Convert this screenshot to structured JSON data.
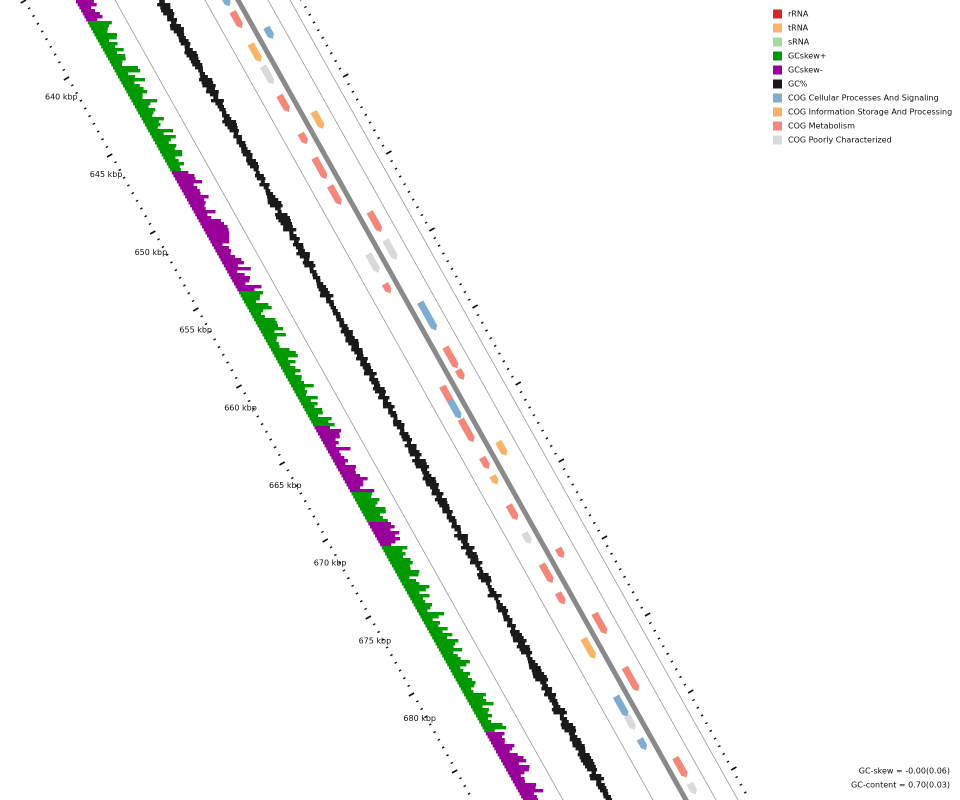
{
  "legend": {
    "items": [
      {
        "label": "rRNA",
        "color": "#d62728"
      },
      {
        "label": "tRNA",
        "color": "#f9b46a"
      },
      {
        "label": "sRNA",
        "color": "#a6dba0"
      },
      {
        "label": "GCskew+",
        "color": "#009900"
      },
      {
        "label": "GCskew-",
        "color": "#990099"
      },
      {
        "label": "GC%",
        "color": "#1a1a1a"
      },
      {
        "label": "COG Cellular Processes And Signaling",
        "color": "#7fadd1"
      },
      {
        "label": "COG Information Storage And Processing",
        "color": "#f9b46a"
      },
      {
        "label": "COG Metabolism",
        "color": "#f4877a"
      },
      {
        "label": "COG Poorly Characterized",
        "color": "#d9d9d9"
      }
    ]
  },
  "scale": {
    "labels": [
      "640 kbp",
      "645 kbp",
      "650 kbp",
      "655 kbp",
      "660 kbp",
      "665 kbp",
      "670 kbp",
      "675 kbp",
      "680 kbp"
    ]
  },
  "footer": {
    "gc_skew": "GC-skew = -0.00(0.06)",
    "gc_content": "GC-content = 0.70(0.03)"
  }
}
